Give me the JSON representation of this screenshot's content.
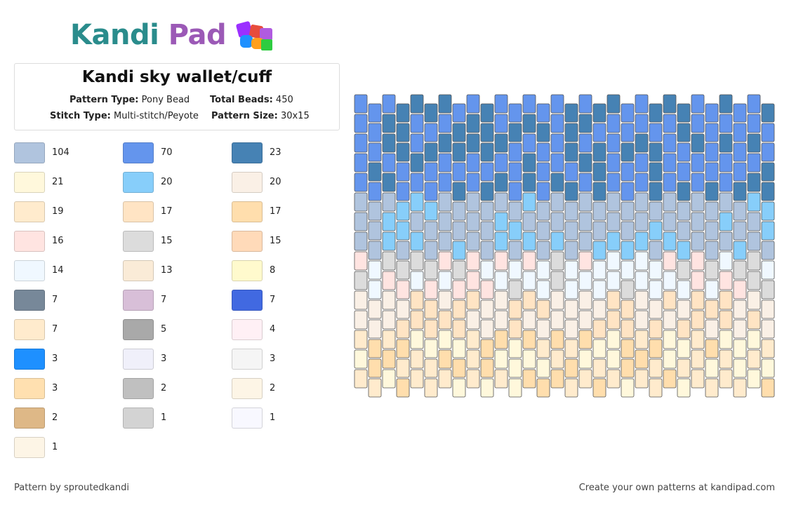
{
  "logo": {
    "part1": "Kandi",
    "part2": "Pad"
  },
  "pattern": {
    "title": "Kandi sky wallet/cuff",
    "type_label": "Pattern Type:",
    "type_value": "Pony Bead",
    "beads_label": "Total Beads:",
    "beads_value": "450",
    "stitch_label": "Stitch Type:",
    "stitch_value": "Multi-stitch/Peyote",
    "size_label": "Pattern Size:",
    "size_value": "30x15"
  },
  "legend": [
    {
      "color": "#b0c4de",
      "count": "104"
    },
    {
      "color": "#6495ed",
      "count": "70"
    },
    {
      "color": "#4682b4",
      "count": "23"
    },
    {
      "color": "#fff8dc",
      "count": "21"
    },
    {
      "color": "#87cefa",
      "count": "20"
    },
    {
      "color": "#faf0e6",
      "count": "20"
    },
    {
      "color": "#ffebcd",
      "count": "19"
    },
    {
      "color": "#ffe4c4",
      "count": "17"
    },
    {
      "color": "#ffdead",
      "count": "17"
    },
    {
      "color": "#ffe4e1",
      "count": "16"
    },
    {
      "color": "#dcdcdc",
      "count": "15"
    },
    {
      "color": "#ffdab9",
      "count": "15"
    },
    {
      "color": "#f0f8ff",
      "count": "14"
    },
    {
      "color": "#faebd7",
      "count": "13"
    },
    {
      "color": "#fffacd",
      "count": "8"
    },
    {
      "color": "#778899",
      "count": "7"
    },
    {
      "color": "#d8bfd8",
      "count": "7"
    },
    {
      "color": "#4169e1",
      "count": "7"
    },
    {
      "color": "#ffebcd",
      "count": "7"
    },
    {
      "color": "#a9a9a9",
      "count": "5"
    },
    {
      "color": "#fff0f5",
      "count": "4"
    },
    {
      "color": "#1e90ff",
      "count": "3"
    },
    {
      "color": "#f0f0fa",
      "count": "3"
    },
    {
      "color": "#f5f5f5",
      "count": "3"
    },
    {
      "color": "#ffe0b0",
      "count": "3"
    },
    {
      "color": "#c0c0c0",
      "count": "2"
    },
    {
      "color": "#fdf5e6",
      "count": "2"
    },
    {
      "color": "#deb887",
      "count": "2"
    },
    {
      "color": "#d3d3d3",
      "count": "1"
    },
    {
      "color": "#f8f8ff",
      "count": "1"
    },
    {
      "color": "#fdf5e6",
      "count": "1"
    }
  ],
  "footer": {
    "left": "Pattern by sproutedkandi",
    "right": "Create your own patterns at kandipad.com"
  }
}
